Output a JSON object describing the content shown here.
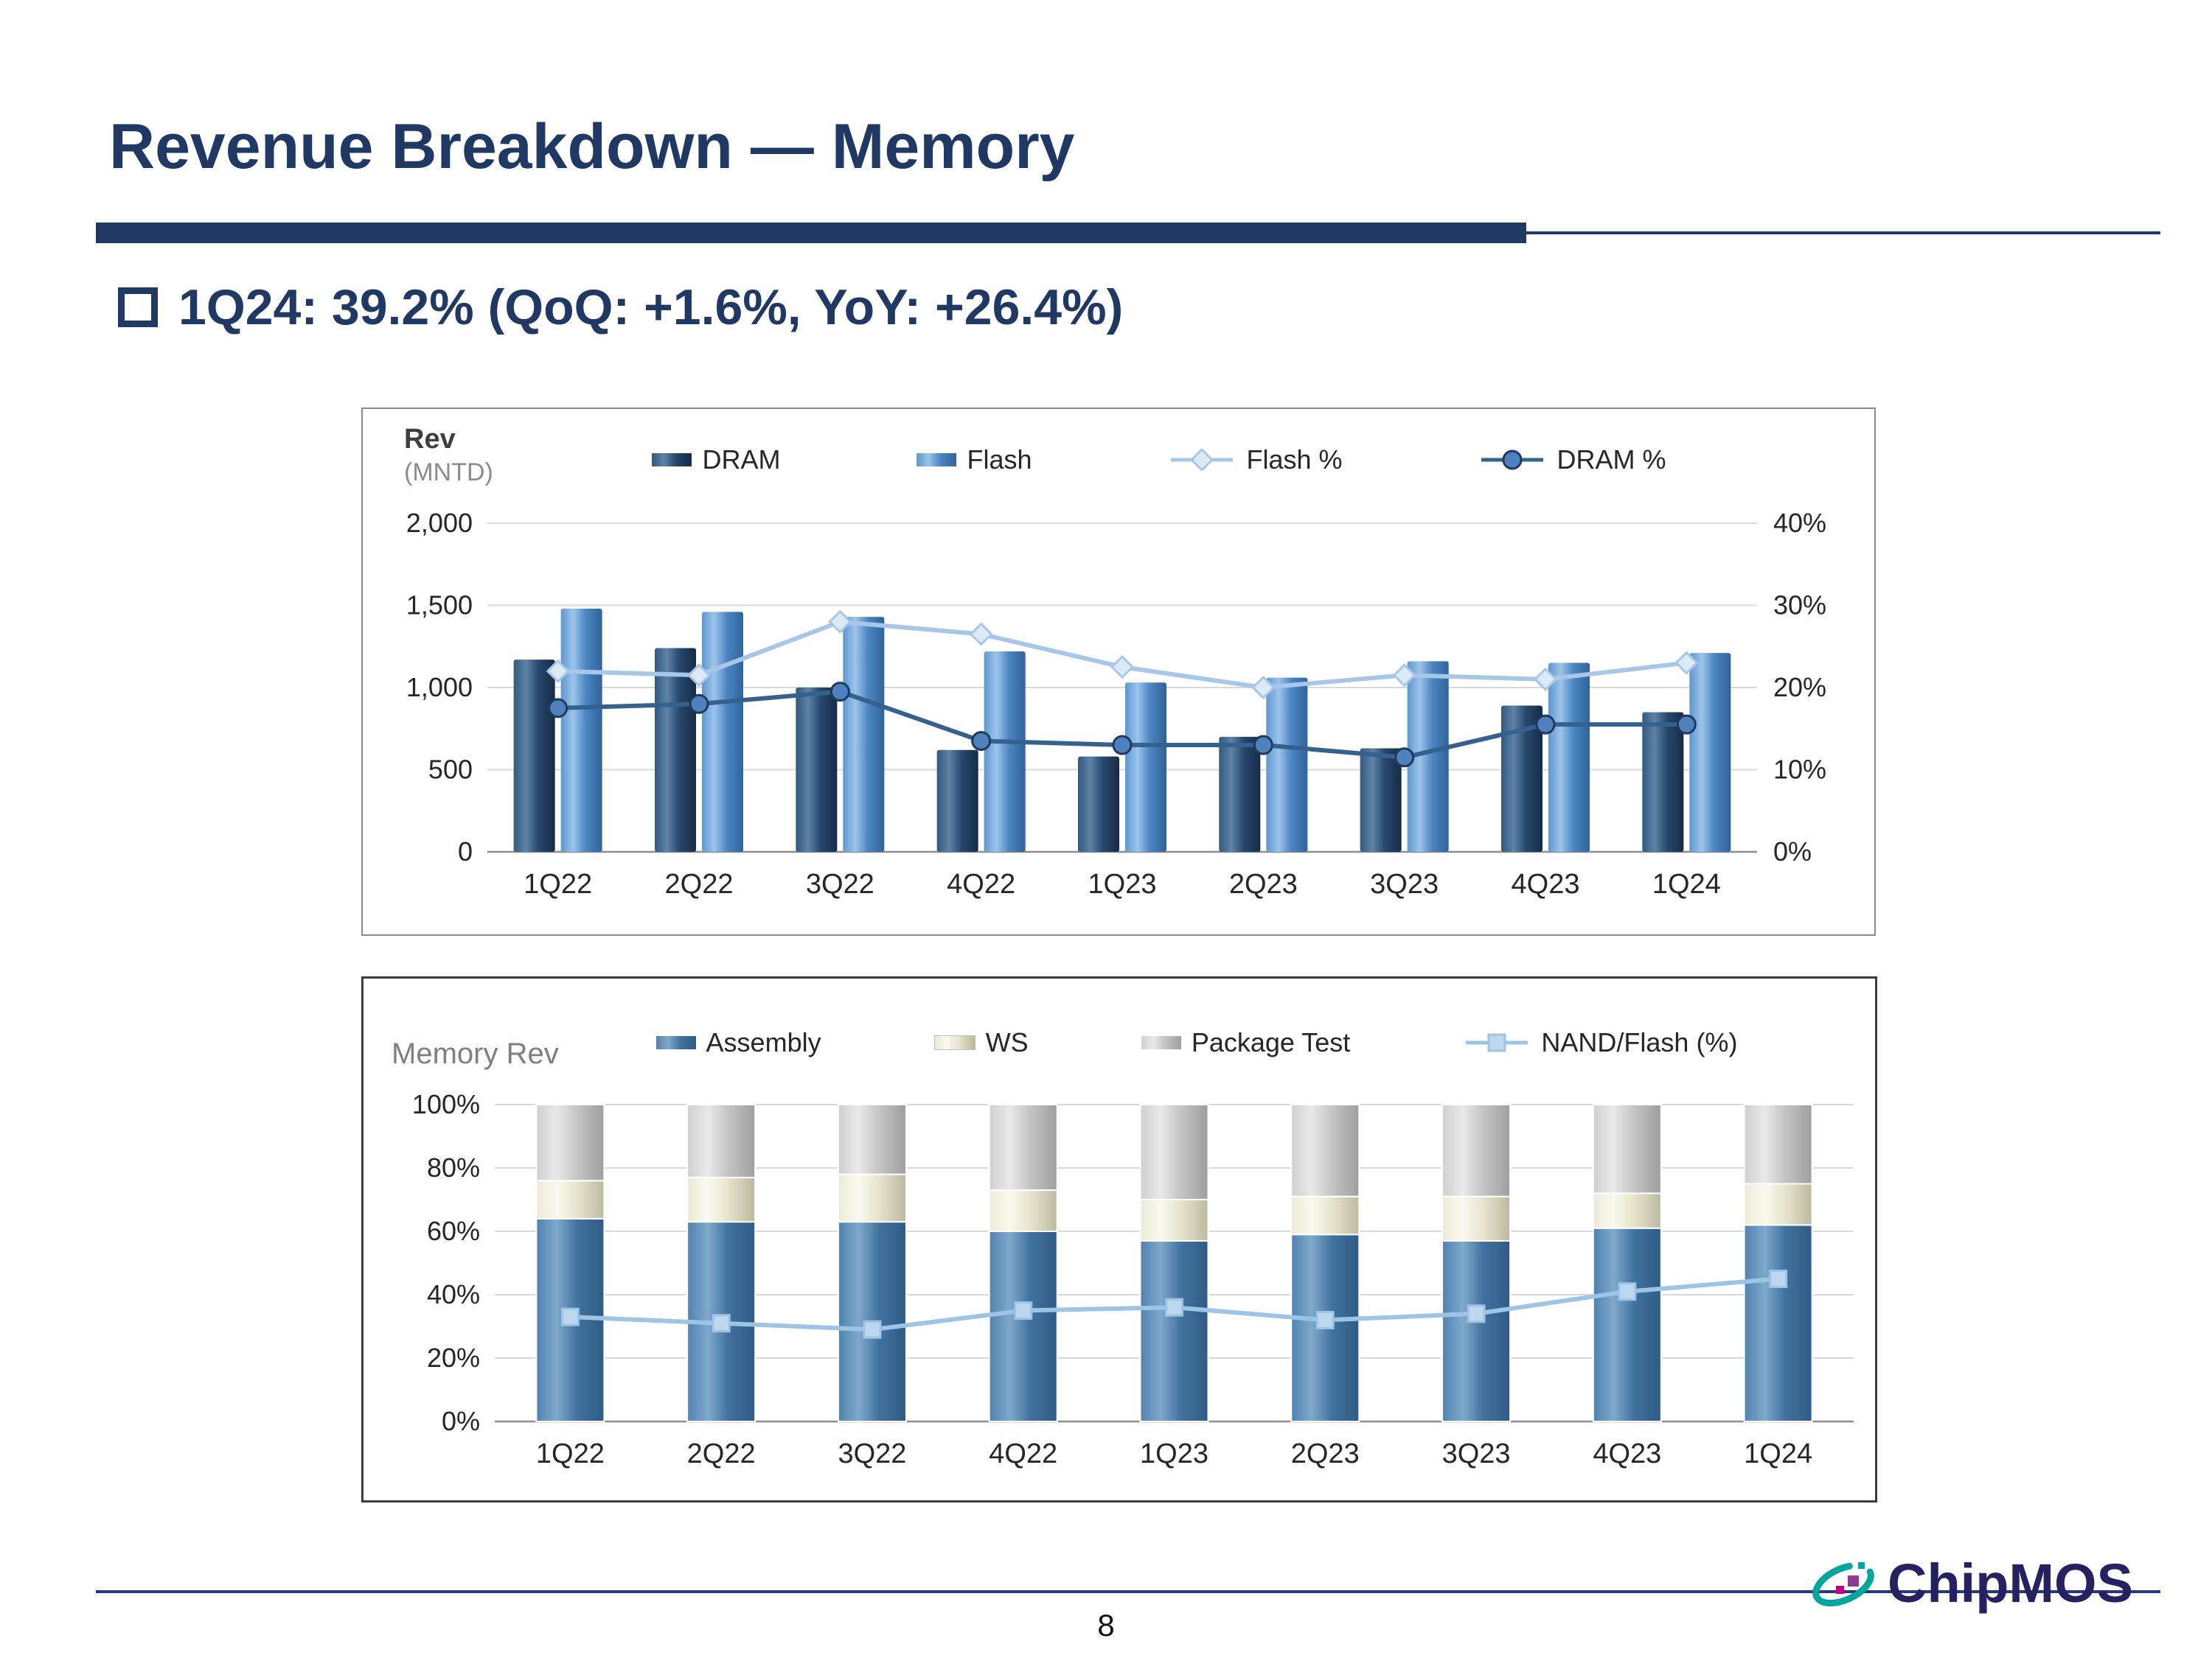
{
  "slide": {
    "title": "Revenue Breakdown — Memory",
    "bullet": "1Q24: 39.2% (QoQ: +1.6%, YoY: +26.4%)",
    "page_number": "8",
    "logo_text": "ChipMOS",
    "accent_color": "#1F3864"
  },
  "chart_data": [
    {
      "type": "bar+line",
      "axis_title": "Rev",
      "axis_subtitle": "(MNTD)",
      "categories": [
        "1Q22",
        "2Q22",
        "3Q22",
        "4Q22",
        "1Q23",
        "2Q23",
        "3Q23",
        "4Q23",
        "1Q24"
      ],
      "bar_series": [
        {
          "name": "DRAM",
          "color": "#1F3A5C",
          "values": [
            1170,
            1240,
            1000,
            620,
            580,
            700,
            630,
            890,
            850
          ]
        },
        {
          "name": "Flash",
          "color": "#4C86C2",
          "values": [
            1480,
            1460,
            1430,
            1220,
            1030,
            1060,
            1160,
            1150,
            1210
          ]
        }
      ],
      "line_series": [
        {
          "name": "Flash %",
          "color": "#A8C6E8",
          "marker": "diamond",
          "values": [
            22,
            21.5,
            28,
            26.5,
            22.5,
            20,
            21.5,
            21,
            23
          ]
        },
        {
          "name": "DRAM %",
          "color": "#35618F",
          "marker": "circle",
          "values": [
            17.5,
            18,
            19.5,
            13.5,
            13,
            13,
            11.5,
            15.5,
            15.5
          ]
        }
      ],
      "y_left": {
        "min": 0,
        "max": 2000,
        "tick_values": [
          0,
          500,
          1000,
          1500,
          2000
        ],
        "tick_labels": [
          "0",
          "500",
          "1,000",
          "1,500",
          "2,000"
        ]
      },
      "y_right": {
        "min": 0,
        "max": 40,
        "tick_values": [
          0,
          10,
          20,
          30,
          40
        ],
        "tick_labels": [
          "0%",
          "10%",
          "20%",
          "30%",
          "40%"
        ]
      },
      "grid": true,
      "legend_position": "top"
    },
    {
      "type": "stacked-bar+line",
      "title": "Memory Rev",
      "categories": [
        "1Q22",
        "2Q22",
        "3Q22",
        "4Q22",
        "1Q23",
        "2Q23",
        "3Q23",
        "4Q23",
        "1Q24"
      ],
      "bar_series": [
        {
          "name": "Assembly",
          "color": "#41729F",
          "values": [
            64,
            63,
            63,
            60,
            57,
            59,
            57,
            61,
            62
          ]
        },
        {
          "name": "WS",
          "color": "#E6E4CC",
          "values": [
            12,
            14,
            15,
            13,
            13,
            12,
            14,
            11,
            13
          ]
        },
        {
          "name": "Package Test",
          "color": "#C4C4C4",
          "values": [
            24,
            23,
            22,
            27,
            30,
            29,
            29,
            28,
            25
          ]
        }
      ],
      "line_series": [
        {
          "name": "NAND/Flash (%)",
          "color": "#9DC3E6",
          "marker": "square",
          "values": [
            33,
            31,
            29,
            35,
            36,
            32,
            34,
            41,
            45
          ]
        }
      ],
      "y_left": {
        "min": 0,
        "max": 100,
        "tick_values": [
          0,
          20,
          40,
          60,
          80,
          100
        ],
        "tick_labels": [
          "0%",
          "20%",
          "40%",
          "60%",
          "80%",
          "100%"
        ]
      },
      "grid": true,
      "legend_position": "top"
    }
  ]
}
